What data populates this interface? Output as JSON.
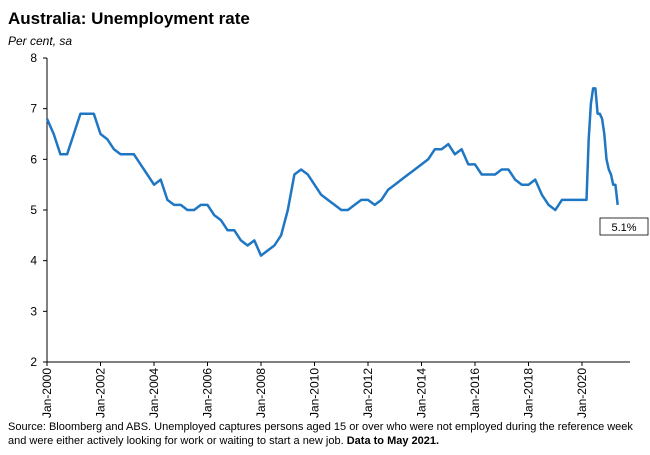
{
  "chart_data": {
    "type": "line",
    "title": "Australia: Unemployment rate",
    "subtitle": "Per cent, sa",
    "source": "Source: Bloomberg and ABS.  Unemployed captures persons aged 15 or over who were not employed during the reference week and were either actively looking for work or waiting to start a new job.",
    "source_bold": "Data to May 2021.",
    "annotation": "5.1%",
    "x": [
      "Jan-2000",
      "Apr-2000",
      "Jul-2000",
      "Oct-2000",
      "Jan-2001",
      "Apr-2001",
      "Jul-2001",
      "Oct-2001",
      "Jan-2002",
      "Apr-2002",
      "Jul-2002",
      "Oct-2002",
      "Jan-2003",
      "Apr-2003",
      "Jul-2003",
      "Oct-2003",
      "Jan-2004",
      "Apr-2004",
      "Jul-2004",
      "Oct-2004",
      "Jan-2005",
      "Apr-2005",
      "Jul-2005",
      "Oct-2005",
      "Jan-2006",
      "Apr-2006",
      "Jul-2006",
      "Oct-2006",
      "Jan-2007",
      "Apr-2007",
      "Jul-2007",
      "Oct-2007",
      "Jan-2008",
      "Apr-2008",
      "Jul-2008",
      "Oct-2008",
      "Jan-2009",
      "Apr-2009",
      "Jul-2009",
      "Oct-2009",
      "Jan-2010",
      "Apr-2010",
      "Jul-2010",
      "Oct-2010",
      "Jan-2011",
      "Apr-2011",
      "Jul-2011",
      "Oct-2011",
      "Jan-2012",
      "Apr-2012",
      "Jul-2012",
      "Oct-2012",
      "Jan-2013",
      "Apr-2013",
      "Jul-2013",
      "Oct-2013",
      "Jan-2014",
      "Apr-2014",
      "Jul-2014",
      "Oct-2014",
      "Jan-2015",
      "Apr-2015",
      "Jul-2015",
      "Oct-2015",
      "Jan-2016",
      "Apr-2016",
      "Jul-2016",
      "Oct-2016",
      "Jan-2017",
      "Apr-2017",
      "Jul-2017",
      "Oct-2017",
      "Jan-2018",
      "Apr-2018",
      "Jul-2018",
      "Oct-2018",
      "Jan-2019",
      "Apr-2019",
      "Jul-2019",
      "Oct-2019",
      "Jan-2020",
      "Mar-2020",
      "Apr-2020",
      "May-2020",
      "Jun-2020",
      "Jul-2020",
      "Aug-2020",
      "Sep-2020",
      "Oct-2020",
      "Nov-2020",
      "Dec-2020",
      "Jan-2021",
      "Feb-2021",
      "Mar-2021",
      "Apr-2021",
      "May-2021"
    ],
    "series": [
      {
        "name": "Unemployment rate",
        "color": "#1f77c4",
        "values": [
          6.8,
          6.5,
          6.1,
          6.1,
          6.5,
          6.9,
          6.9,
          6.9,
          6.5,
          6.4,
          6.2,
          6.1,
          6.1,
          6.1,
          5.9,
          5.7,
          5.5,
          5.6,
          5.2,
          5.1,
          5.1,
          5.0,
          5.0,
          5.1,
          5.1,
          4.9,
          4.8,
          4.6,
          4.6,
          4.4,
          4.3,
          4.4,
          4.1,
          4.2,
          4.3,
          4.5,
          5.0,
          5.7,
          5.8,
          5.7,
          5.5,
          5.3,
          5.2,
          5.1,
          5.0,
          5.0,
          5.1,
          5.2,
          5.2,
          5.1,
          5.2,
          5.4,
          5.5,
          5.6,
          5.7,
          5.8,
          5.9,
          6.0,
          6.2,
          6.2,
          6.3,
          6.1,
          6.2,
          5.9,
          5.9,
          5.7,
          5.7,
          5.7,
          5.8,
          5.8,
          5.6,
          5.5,
          5.5,
          5.6,
          5.3,
          5.1,
          5.0,
          5.2,
          5.2,
          5.2,
          5.2,
          5.2,
          6.4,
          7.1,
          7.4,
          7.4,
          6.9,
          6.9,
          6.8,
          6.5,
          6.0,
          5.8,
          5.7,
          5.5,
          5.5,
          5.1
        ]
      }
    ],
    "xticks": [
      "Jan-2000",
      "Jan-2002",
      "Jan-2004",
      "Jan-2006",
      "Jan-2008",
      "Jan-2010",
      "Jan-2012",
      "Jan-2014",
      "Jan-2016",
      "Jan-2018",
      "Jan-2020"
    ],
    "ylim": [
      2,
      8
    ],
    "yticks": [
      2,
      3,
      4,
      5,
      6,
      7,
      8
    ],
    "grid": false
  }
}
